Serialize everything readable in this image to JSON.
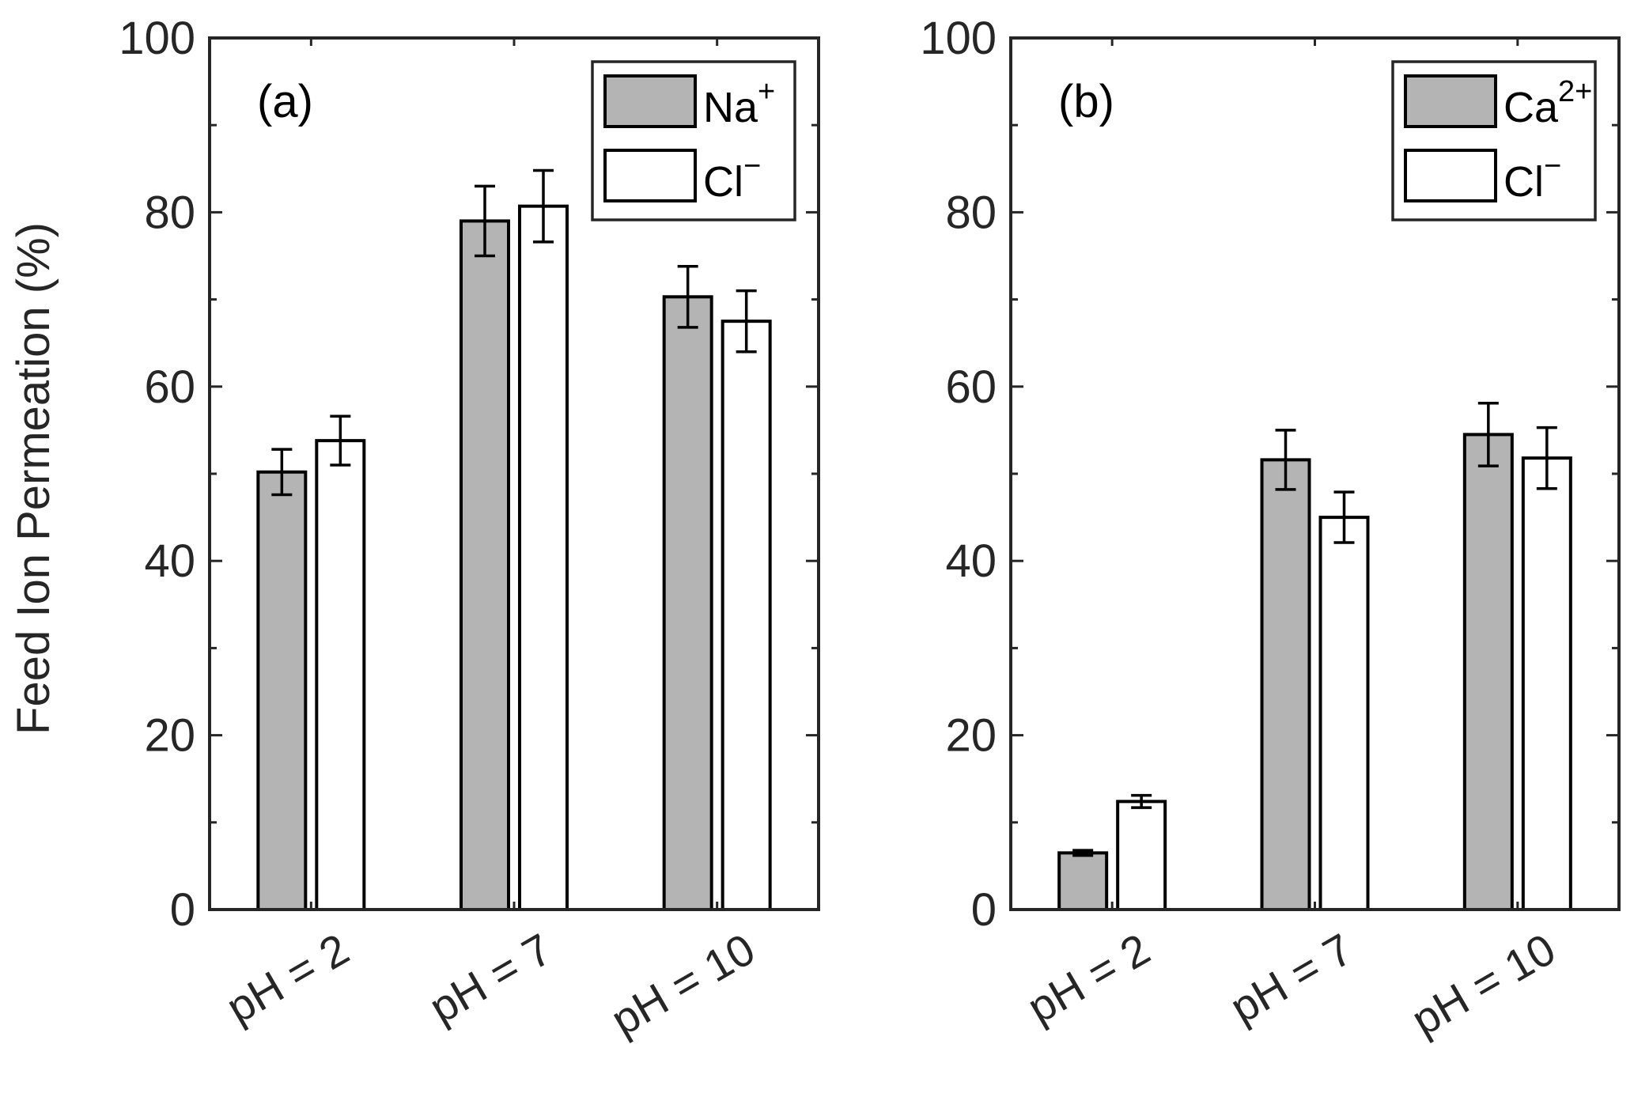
{
  "colors": {
    "gray_bar": "#b4b4b4",
    "white_bar": "#ffffff",
    "axis": "#262626",
    "text": "#262626"
  },
  "y_axis_label": "Feed Ion Permeation (%)",
  "chart_data": [
    {
      "type": "bar",
      "panel_label": "(a)",
      "categories": [
        "pH = 2",
        "pH = 7",
        "pH = 10"
      ],
      "ylim": [
        0,
        100
      ],
      "yticks": [
        0,
        20,
        40,
        60,
        80,
        100
      ],
      "ylabel": "Feed Ion Permeation (%)",
      "legend_position": "top-right",
      "series": [
        {
          "name": "Na",
          "superscript": "+",
          "fill": "#b4b4b4",
          "values": [
            50.2,
            79.0,
            70.3
          ],
          "errors": [
            2.6,
            4.0,
            3.5
          ]
        },
        {
          "name": "Cl",
          "superscript": "−",
          "fill": "#ffffff",
          "values": [
            53.8,
            80.7,
            67.5
          ],
          "errors": [
            2.8,
            4.1,
            3.5
          ]
        }
      ]
    },
    {
      "type": "bar",
      "panel_label": "(b)",
      "categories": [
        "pH = 2",
        "pH = 7",
        "pH = 10"
      ],
      "ylim": [
        0,
        100
      ],
      "yticks": [
        0,
        20,
        40,
        60,
        80,
        100
      ],
      "ylabel": "",
      "legend_position": "top-right",
      "series": [
        {
          "name": "Ca",
          "superscript": "2+",
          "fill": "#b4b4b4",
          "values": [
            6.5,
            51.6,
            54.5
          ],
          "errors": [
            0.3,
            3.4,
            3.6
          ]
        },
        {
          "name": "Cl",
          "superscript": "−",
          "fill": "#ffffff",
          "values": [
            12.4,
            45.0,
            51.8
          ],
          "errors": [
            0.7,
            2.9,
            3.5
          ]
        }
      ]
    }
  ]
}
